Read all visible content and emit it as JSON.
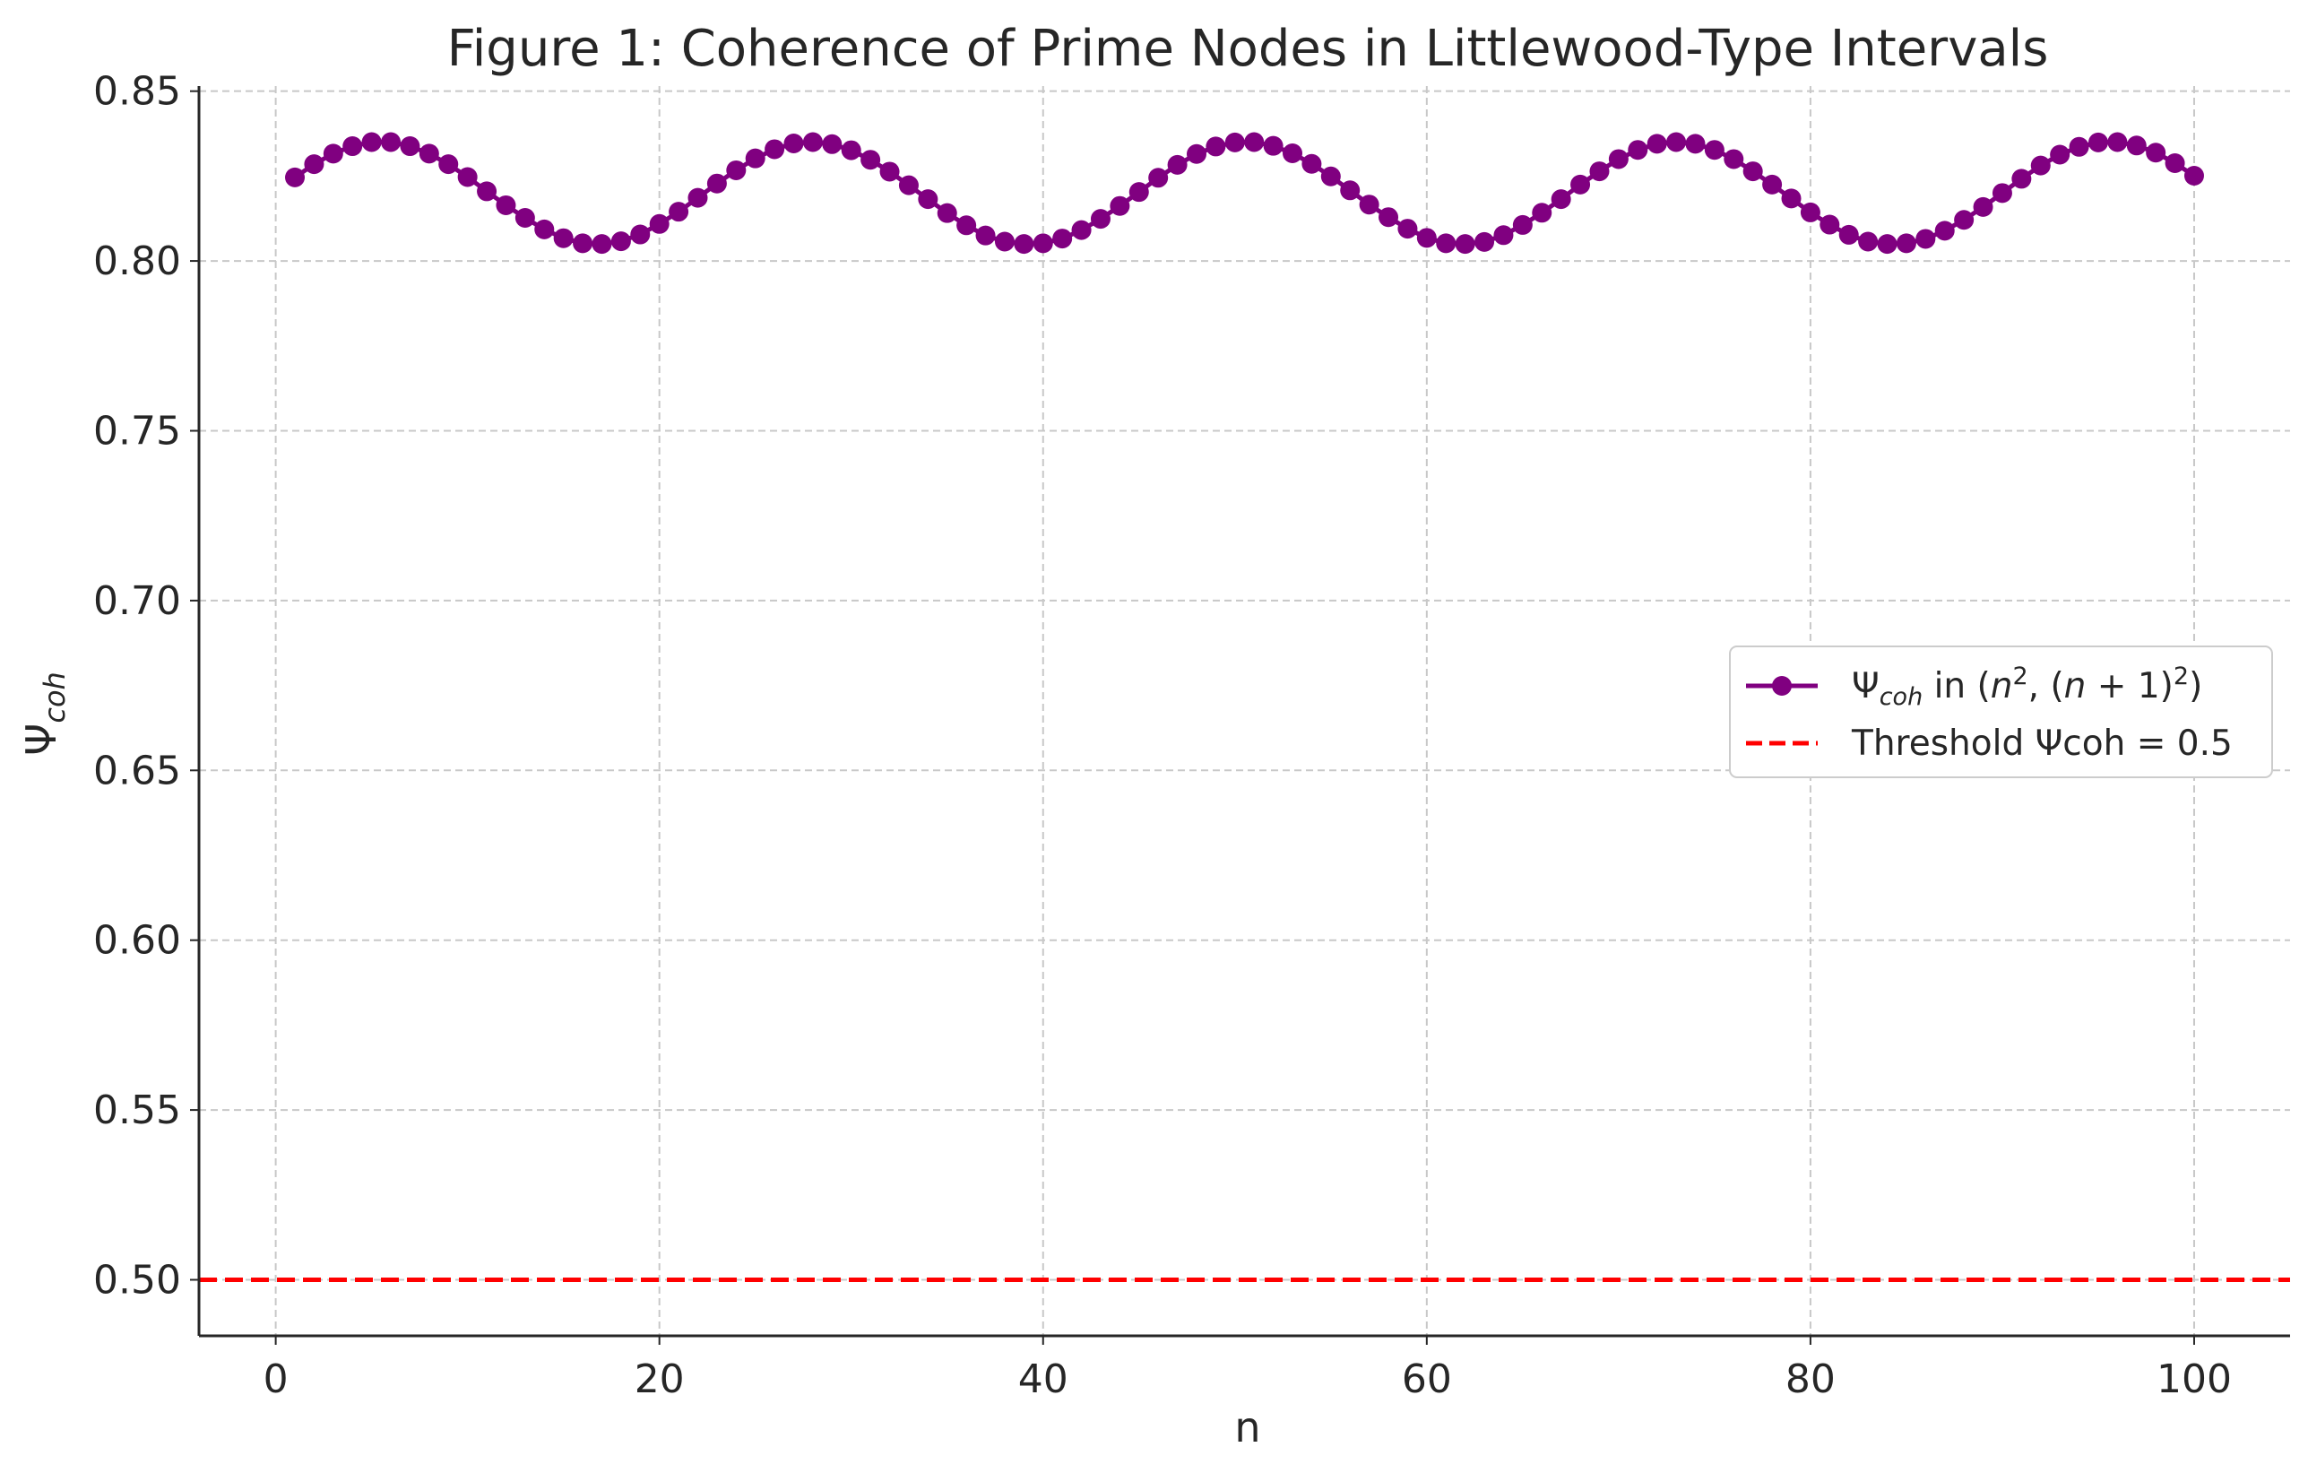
{
  "chart_data": {
    "type": "line",
    "title": "Figure 1: Coherence of Prime Nodes in Littlewood-Type Intervals",
    "xlabel": "n",
    "ylabel": "Ψ",
    "ylabel_sub": "coh",
    "xlim": [
      -4,
      105
    ],
    "ylim": [
      0.4835,
      0.8515
    ],
    "xticks": [
      0,
      20,
      40,
      60,
      80,
      100
    ],
    "xtick_labels": [
      "0",
      "20",
      "40",
      "60",
      "80",
      "100"
    ],
    "yticks": [
      0.5,
      0.55,
      0.6,
      0.65,
      0.7,
      0.75,
      0.8,
      0.85
    ],
    "ytick_labels": [
      "0.50",
      "0.55",
      "0.60",
      "0.65",
      "0.70",
      "0.75",
      "0.80",
      "0.85"
    ],
    "grid": true,
    "legend_position": "center-right",
    "series": [
      {
        "name": "Ψcoh in (n², (n+1)²)",
        "legend": {
          "base": "Ψ",
          "sub": "coh",
          "text": " in (",
          "n1": "n",
          "sup1": "2",
          "mid": ", (",
          "n2": "n",
          "plus": " + 1)",
          "sup2": "2",
          "end": ")"
        },
        "color": "#800080",
        "marker": "circle",
        "x": [
          1,
          2,
          3,
          4,
          5,
          6,
          7,
          8,
          9,
          10,
          11,
          12,
          13,
          14,
          15,
          16,
          17,
          18,
          19,
          20,
          21,
          22,
          23,
          24,
          25,
          26,
          27,
          28,
          29,
          30,
          31,
          32,
          33,
          34,
          35,
          36,
          37,
          38,
          39,
          40,
          41,
          42,
          43,
          44,
          45,
          46,
          47,
          48,
          49,
          50,
          51,
          52,
          53,
          54,
          55,
          56,
          57,
          58,
          59,
          60,
          61,
          62,
          63,
          64,
          65,
          66,
          67,
          68,
          69,
          70,
          71,
          72,
          73,
          74,
          75,
          76,
          77,
          78,
          79,
          80,
          81,
          82,
          83,
          84,
          85,
          86,
          87,
          88,
          89,
          90,
          91,
          92,
          93,
          94,
          95,
          96,
          97,
          98,
          99,
          100
        ],
        "y": [
          0.8246,
          0.8285,
          0.8316,
          0.8338,
          0.835,
          0.835,
          0.8338,
          0.8316,
          0.8285,
          0.8247,
          0.8205,
          0.8164,
          0.8127,
          0.8093,
          0.8067,
          0.8052,
          0.805,
          0.8058,
          0.8078,
          0.8109,
          0.8145,
          0.8186,
          0.8228,
          0.8267,
          0.8302,
          0.8329,
          0.8346,
          0.835,
          0.8344,
          0.8326,
          0.8298,
          0.8263,
          0.8223,
          0.8182,
          0.8141,
          0.8105,
          0.8075,
          0.8057,
          0.805,
          0.8052,
          0.8066,
          0.8091,
          0.8124,
          0.8162,
          0.8203,
          0.8245,
          0.8283,
          0.8315,
          0.8337,
          0.8349,
          0.835,
          0.8339,
          0.8317,
          0.8286,
          0.8249,
          0.8208,
          0.8166,
          0.8129,
          0.8095,
          0.8068,
          0.8052,
          0.805,
          0.8056,
          0.8076,
          0.8106,
          0.8142,
          0.8182,
          0.8225,
          0.8264,
          0.83,
          0.8327,
          0.8345,
          0.835,
          0.8345,
          0.8327,
          0.83,
          0.8264,
          0.8225,
          0.8184,
          0.8143,
          0.8107,
          0.8077,
          0.8057,
          0.805,
          0.8052,
          0.8065,
          0.8089,
          0.8121,
          0.8159,
          0.82,
          0.8242,
          0.8281,
          0.8313,
          0.8336,
          0.8349,
          0.835,
          0.834,
          0.8319,
          0.8288,
          0.8251
        ]
      },
      {
        "name": "Threshold Ψcoh = 0.5",
        "color": "#ff0000",
        "style": "dashed",
        "y": 0.5
      }
    ]
  }
}
